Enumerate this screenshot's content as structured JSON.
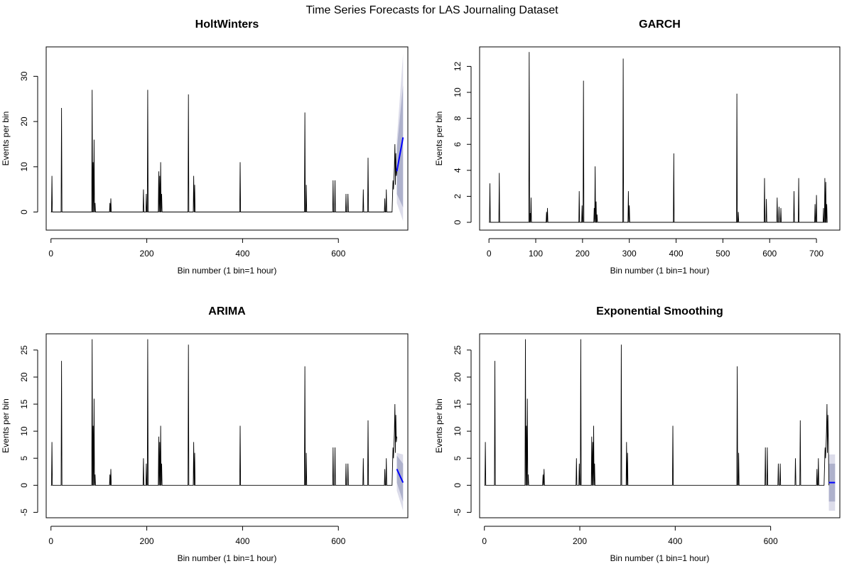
{
  "figure": {
    "title": "Time Series Forecasts for LAS Journaling Dataset"
  },
  "colors": {
    "series": "#000000",
    "forecast": "#0000ff",
    "band_outer": "#dcdcea",
    "band_inner": "#aeb1cc"
  },
  "chart_data": [
    {
      "type": "line",
      "title": "HoltWinters",
      "xlabel": "Bin number (1 bin=1 hour)",
      "ylabel": "Events per bin",
      "xlim": [
        -10,
        745
      ],
      "ylim": [
        -4,
        36.5
      ],
      "xticks": [
        0,
        200,
        400,
        600
      ],
      "yticks": [
        0,
        10,
        20,
        30
      ],
      "grid": false,
      "spikes": [
        [
          2,
          8
        ],
        [
          22,
          23
        ],
        [
          86,
          27
        ],
        [
          88,
          11
        ],
        [
          90,
          16
        ],
        [
          92,
          2
        ],
        [
          123,
          2
        ],
        [
          125,
          3
        ],
        [
          193,
          5
        ],
        [
          199,
          4
        ],
        [
          202,
          27
        ],
        [
          225,
          9
        ],
        [
          227,
          8
        ],
        [
          229,
          11
        ],
        [
          231,
          4
        ],
        [
          287,
          26
        ],
        [
          298,
          8
        ],
        [
          300,
          6
        ],
        [
          395,
          11
        ],
        [
          530,
          22
        ],
        [
          533,
          6
        ],
        [
          589,
          7
        ],
        [
          593,
          7
        ],
        [
          616,
          4
        ],
        [
          620,
          4
        ],
        [
          652,
          5
        ],
        [
          662,
          12
        ],
        [
          697,
          3
        ],
        [
          700,
          5
        ]
      ],
      "tail": [
        [
          712,
          0
        ],
        [
          714,
          7
        ],
        [
          715,
          5
        ],
        [
          716,
          7
        ],
        [
          717,
          10
        ],
        [
          718,
          15
        ],
        [
          719,
          6
        ],
        [
          720,
          13
        ],
        [
          721,
          8
        ],
        [
          722,
          9
        ]
      ],
      "forecast": {
        "x": [
          722,
          735
        ],
        "mean": [
          9,
          16.5
        ],
        "inner": [
          [
            4,
            14
          ],
          [
            1,
            28
          ]
        ],
        "outer": [
          [
            2,
            16
          ],
          [
            -2,
            35
          ]
        ]
      }
    },
    {
      "type": "line",
      "title": "GARCH",
      "xlabel": "Bin number (1 bin=1 hour)",
      "ylabel": "Events per bin",
      "xlim": [
        -20,
        750
      ],
      "ylim": [
        -0.6,
        13.5
      ],
      "xticks": [
        0,
        100,
        200,
        300,
        400,
        500,
        600,
        700
      ],
      "yticks": [
        0,
        2,
        4,
        6,
        8,
        10,
        12
      ],
      "grid": false,
      "spikes": [
        [
          2,
          3
        ],
        [
          22,
          3.8
        ],
        [
          86,
          13.1
        ],
        [
          88,
          0.7
        ],
        [
          90,
          1.9
        ],
        [
          123,
          0.8
        ],
        [
          125,
          1.1
        ],
        [
          193,
          2.4
        ],
        [
          199,
          1.3
        ],
        [
          202,
          10.9
        ],
        [
          225,
          1.1
        ],
        [
          227,
          4.3
        ],
        [
          229,
          1.6
        ],
        [
          231,
          0.6
        ],
        [
          287,
          12.6
        ],
        [
          298,
          2.4
        ],
        [
          300,
          1.3
        ],
        [
          395,
          5.3
        ],
        [
          530,
          9.9
        ],
        [
          533,
          0.8
        ],
        [
          589,
          3.4
        ],
        [
          593,
          1.8
        ],
        [
          616,
          1.9
        ],
        [
          620,
          1.2
        ],
        [
          624,
          1.1
        ],
        [
          652,
          2.4
        ],
        [
          662,
          3.4
        ],
        [
          697,
          1.4
        ],
        [
          700,
          2.1
        ],
        [
          715,
          1.1
        ],
        [
          718,
          3.4
        ],
        [
          720,
          3.1
        ],
        [
          722,
          1.4
        ]
      ],
      "tail": [],
      "forecast": null
    },
    {
      "type": "line",
      "title": "ARIMA",
      "xlabel": "Bin number (1 bin=1 hour)",
      "ylabel": "Events per bin",
      "xlim": [
        -10,
        745
      ],
      "ylim": [
        -6,
        28
      ],
      "xticks": [
        0,
        200,
        400,
        600
      ],
      "yticks": [
        -5,
        0,
        5,
        10,
        15,
        20,
        25
      ],
      "grid": false,
      "spikes": [
        [
          2,
          8
        ],
        [
          22,
          23
        ],
        [
          86,
          27
        ],
        [
          88,
          11
        ],
        [
          90,
          16
        ],
        [
          92,
          2
        ],
        [
          123,
          2
        ],
        [
          125,
          3
        ],
        [
          193,
          5
        ],
        [
          199,
          4
        ],
        [
          202,
          27
        ],
        [
          225,
          9
        ],
        [
          227,
          8
        ],
        [
          229,
          11
        ],
        [
          231,
          4
        ],
        [
          287,
          26
        ],
        [
          298,
          8
        ],
        [
          300,
          6
        ],
        [
          395,
          11
        ],
        [
          530,
          22
        ],
        [
          533,
          6
        ],
        [
          589,
          7
        ],
        [
          593,
          7
        ],
        [
          616,
          4
        ],
        [
          620,
          4
        ],
        [
          652,
          5
        ],
        [
          662,
          12
        ],
        [
          697,
          3
        ],
        [
          700,
          5
        ]
      ],
      "tail": [
        [
          712,
          0
        ],
        [
          714,
          7
        ],
        [
          715,
          5
        ],
        [
          716,
          7
        ],
        [
          717,
          10
        ],
        [
          718,
          15
        ],
        [
          719,
          6
        ],
        [
          720,
          13
        ],
        [
          721,
          8
        ],
        [
          722,
          9
        ]
      ],
      "forecast": {
        "x": [
          722,
          735
        ],
        "mean": [
          3,
          0.5
        ],
        "inner": [
          [
            0.5,
            5.5
          ],
          [
            -3,
            4
          ]
        ],
        "outer": [
          [
            -1,
            6
          ],
          [
            -4.7,
            5.7
          ]
        ]
      }
    },
    {
      "type": "line",
      "title": "Exponential Smoothing",
      "xlabel": "Bin number (1 bin=1 hour)",
      "ylabel": "Events per bin",
      "xlim": [
        -10,
        745
      ],
      "ylim": [
        -6,
        28
      ],
      "xticks": [
        0,
        200,
        400,
        600
      ],
      "yticks": [
        -5,
        0,
        5,
        10,
        15,
        20,
        25
      ],
      "grid": false,
      "spikes": [
        [
          2,
          8
        ],
        [
          22,
          23
        ],
        [
          86,
          27
        ],
        [
          88,
          11
        ],
        [
          90,
          16
        ],
        [
          92,
          2
        ],
        [
          123,
          2
        ],
        [
          125,
          3
        ],
        [
          193,
          5
        ],
        [
          199,
          4
        ],
        [
          202,
          27
        ],
        [
          225,
          9
        ],
        [
          227,
          8
        ],
        [
          229,
          11
        ],
        [
          231,
          4
        ],
        [
          287,
          26
        ],
        [
          298,
          8
        ],
        [
          300,
          6
        ],
        [
          395,
          11
        ],
        [
          530,
          22
        ],
        [
          533,
          6
        ],
        [
          589,
          7
        ],
        [
          593,
          7
        ],
        [
          616,
          4
        ],
        [
          620,
          4
        ],
        [
          652,
          5
        ],
        [
          662,
          12
        ],
        [
          697,
          3
        ],
        [
          700,
          5
        ]
      ],
      "tail": [
        [
          712,
          0
        ],
        [
          714,
          7
        ],
        [
          715,
          5
        ],
        [
          716,
          7
        ],
        [
          717,
          10
        ],
        [
          718,
          15
        ],
        [
          719,
          6
        ],
        [
          720,
          13
        ],
        [
          721,
          8
        ],
        [
          722,
          0
        ]
      ],
      "forecast": {
        "x": [
          722,
          735
        ],
        "mean": [
          0.5,
          0.5
        ],
        "inner": [
          [
            -3,
            4
          ],
          [
            -3,
            4
          ]
        ],
        "outer": [
          [
            -4.7,
            5.7
          ],
          [
            -4.7,
            5.7
          ]
        ]
      }
    }
  ]
}
